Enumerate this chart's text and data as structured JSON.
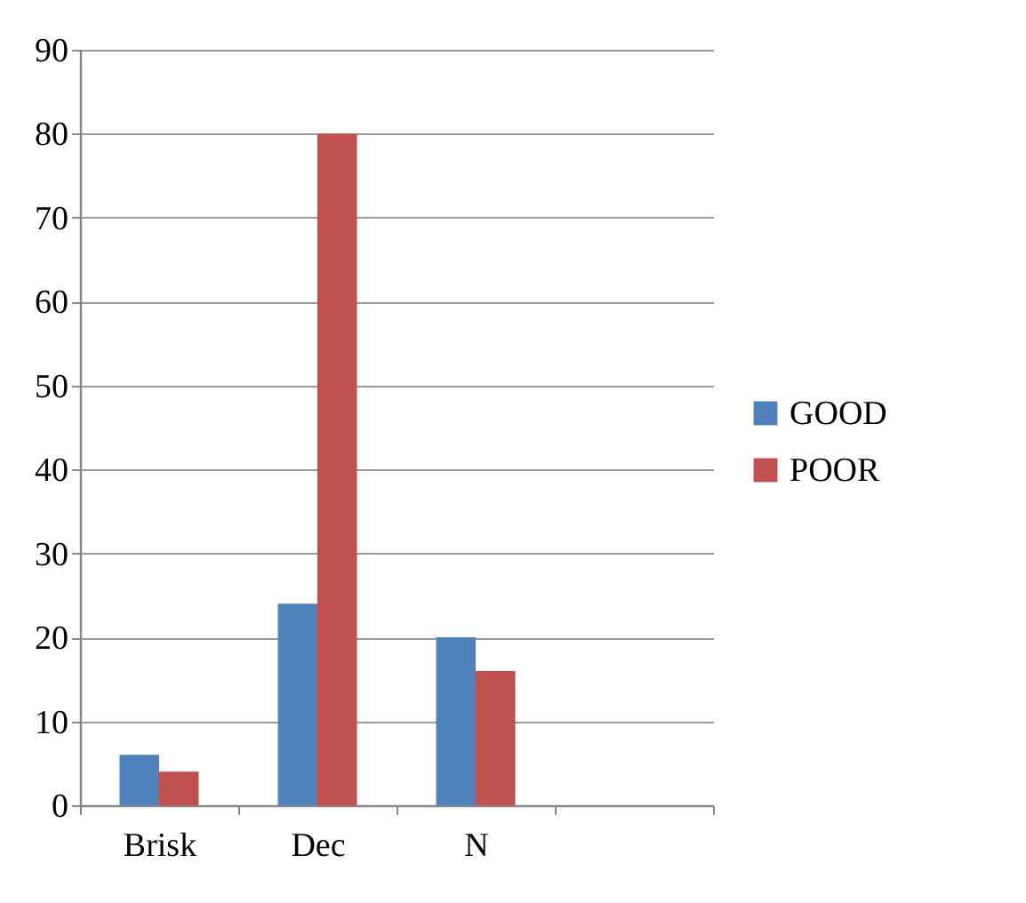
{
  "chart_data": {
    "type": "bar",
    "categories": [
      "Brisk",
      "Dec",
      "N",
      null
    ],
    "series": [
      {
        "name": "GOOD",
        "color": "#4f81bd",
        "values": [
          6,
          24,
          20,
          null
        ]
      },
      {
        "name": "POOR",
        "color": "#c0504d",
        "values": [
          4,
          80,
          16,
          null
        ]
      }
    ],
    "ylim": [
      0,
      90
    ],
    "yticks": [
      0,
      10,
      20,
      30,
      40,
      50,
      60,
      70,
      80,
      90
    ],
    "grid": "y",
    "legend": "right"
  }
}
